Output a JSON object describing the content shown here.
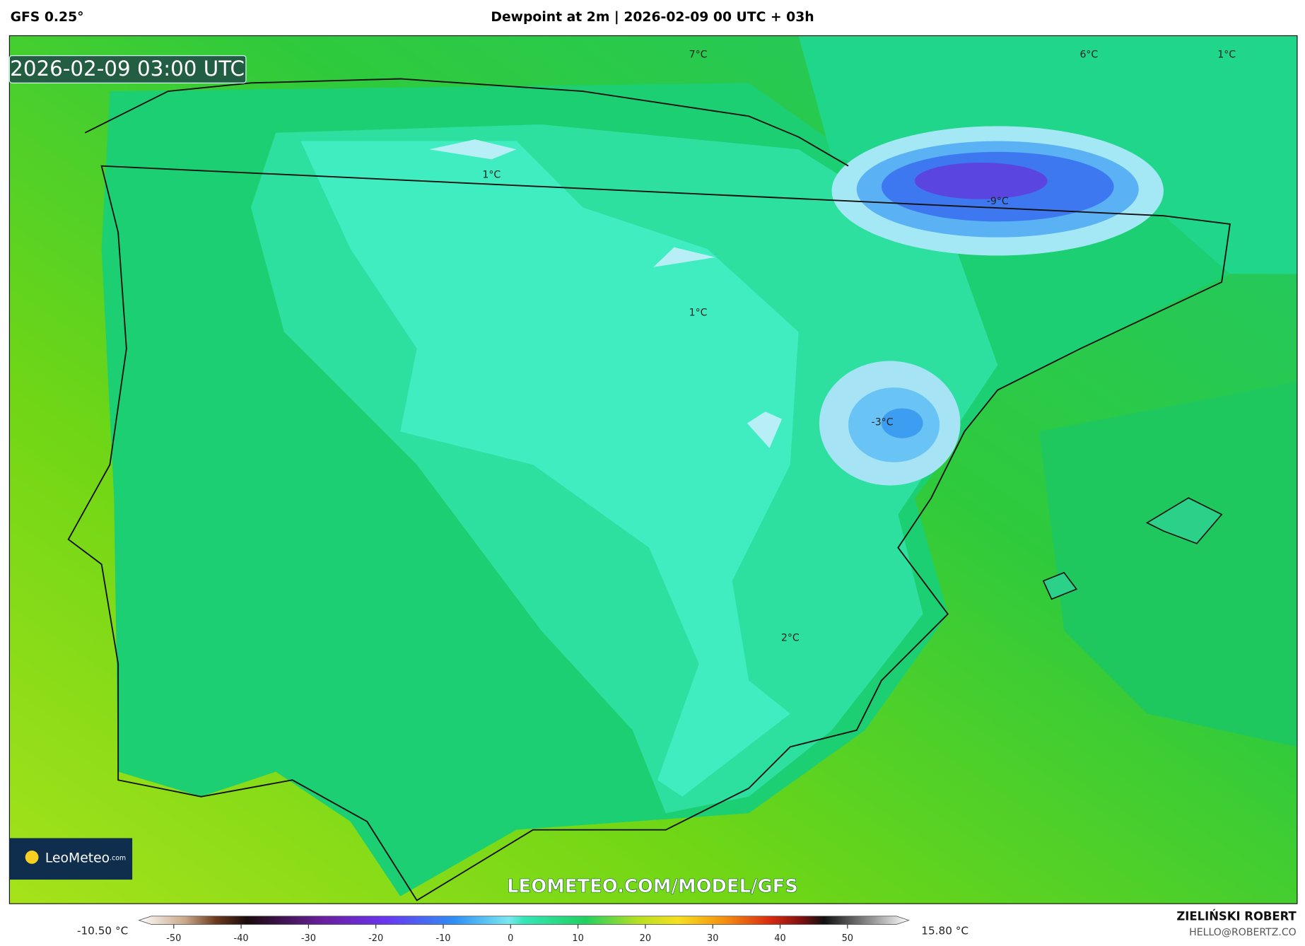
{
  "header": {
    "model": "GFS 0.25°",
    "title": "Dewpoint at 2m | 2026-02-09 00 UTC + 03h"
  },
  "map": {
    "timestamp": "2026-02-09 03:00 UTC",
    "contour_labels": [
      "7°C",
      "6°C",
      "1°C",
      "1°C",
      "-9°C",
      "1°C",
      "-3°C",
      "2°C"
    ],
    "logo": {
      "name": "LeoMeteo",
      "suffix": ".com"
    },
    "watermark": "LEOMETEO.COM/MODEL/GFS"
  },
  "colorbar": {
    "min_label": "-10.50 °C",
    "max_label": "15.80 °C",
    "ticks": [
      -50,
      -40,
      -30,
      -20,
      -10,
      0,
      10,
      20,
      30,
      40,
      50
    ]
  },
  "credits": {
    "author": "ZIELIŃSKI ROBERT",
    "email": "HELLO@ROBERTZ.CO"
  }
}
